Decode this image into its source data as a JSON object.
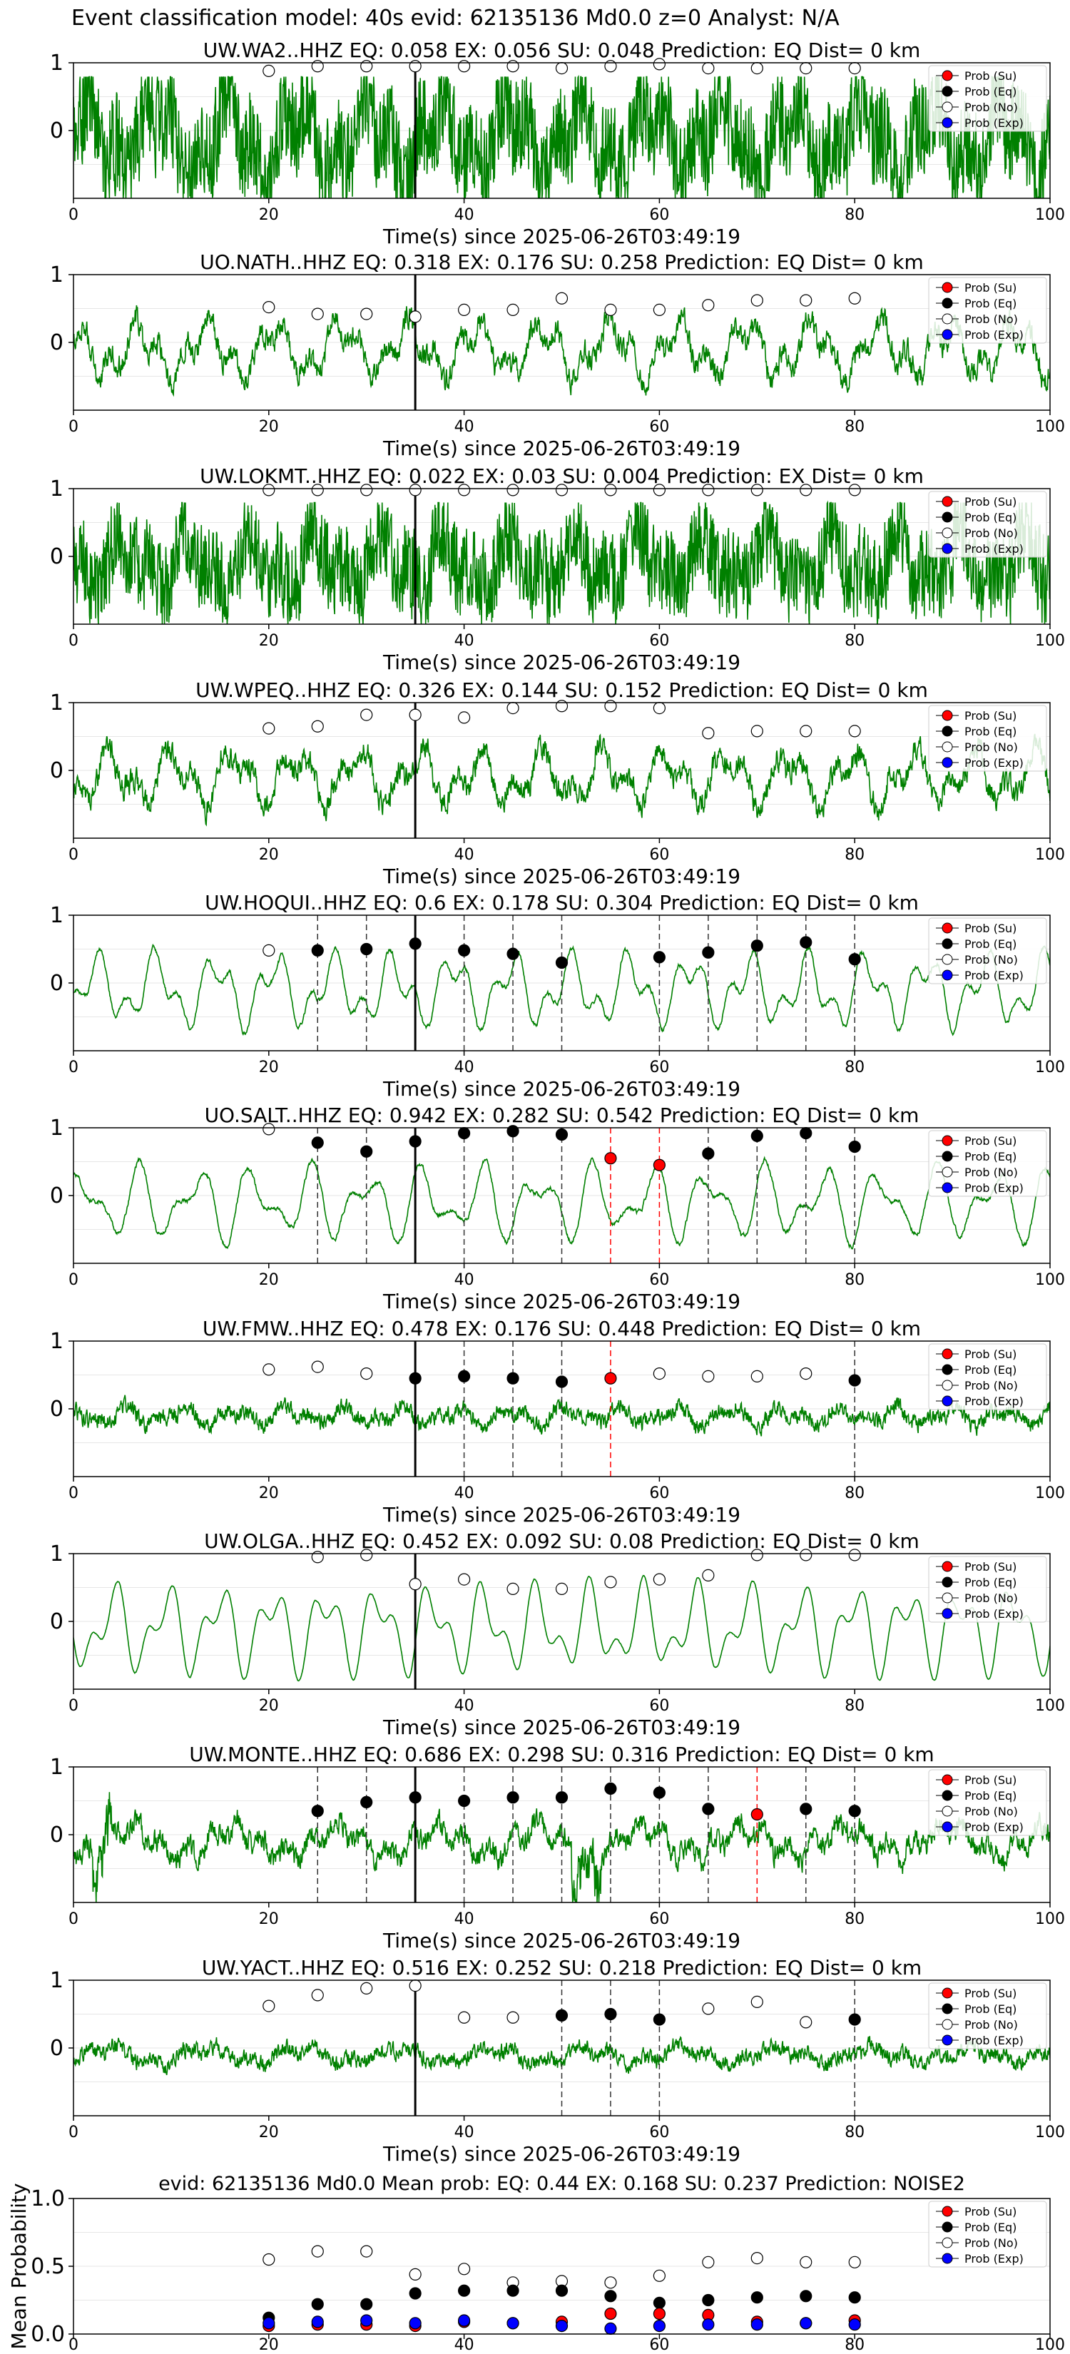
{
  "suptitle": "Event classification model: 40s evid: 62135136 Md0.0 z=0 Analyst: N/A",
  "legend_labels": [
    "Prob (Su)",
    "Prob (Eq)",
    "Prob (No)",
    "Prob (Exp)"
  ],
  "colors": {
    "su": "#ff0000",
    "eq": "#000000",
    "no": "#ffffff",
    "exp": "#0000ff",
    "trace": "#008000",
    "pick": "#000000"
  },
  "pick_time": 35,
  "chart_data": [
    {
      "type": "line",
      "title": "UW.WA2..HHZ   EQ: 0.058  EX: 0.056  SU: 0.048   Prediction: EQ    Dist= 0 km",
      "xlabel": "Time(s) since 2025-06-26T03:49:19",
      "xlim": [
        0,
        100
      ],
      "ylim": [
        -1,
        1
      ],
      "x_ticks": [
        0,
        20,
        40,
        60,
        80,
        100
      ],
      "y_ticks": [
        0,
        1
      ],
      "grid": "horizontal-light",
      "legend": "right",
      "trace_style": "noisy-high",
      "windows": [
        20,
        25,
        30,
        35,
        40,
        45,
        50,
        55,
        60,
        65,
        70,
        75,
        80
      ],
      "prob_no": [
        0.88,
        0.95,
        0.95,
        0.95,
        0.95,
        0.95,
        0.92,
        0.95,
        0.98,
        0.92,
        0.92,
        0.92,
        0.92
      ],
      "prob_eq_markers": [],
      "prob_su_markers": [],
      "eq_lines": [],
      "su_lines": []
    },
    {
      "type": "line",
      "title": "UO.NATH..HHZ   EQ: 0.318  EX: 0.176  SU: 0.258   Prediction: EQ    Dist= 0 km",
      "xlabel": "Time(s) since 2025-06-26T03:49:19",
      "xlim": [
        0,
        100
      ],
      "ylim": [
        -1,
        1
      ],
      "x_ticks": [
        0,
        20,
        40,
        60,
        80,
        100
      ],
      "y_ticks": [
        0,
        1
      ],
      "grid": "horizontal-light",
      "legend": "right",
      "trace_style": "wavy",
      "windows": [
        20,
        25,
        30,
        35,
        40,
        45,
        50,
        55,
        60,
        65,
        70,
        75,
        80
      ],
      "prob_no": [
        0.52,
        0.42,
        0.42,
        0.38,
        0.48,
        0.48,
        0.65,
        0.48,
        0.48,
        0.55,
        0.62,
        0.62,
        0.65
      ],
      "prob_eq_markers": [],
      "prob_su_markers": [],
      "eq_lines": [],
      "su_lines": []
    },
    {
      "type": "line",
      "title": "UW.LOKMT..HHZ   EQ: 0.022  EX: 0.03  SU: 0.004   Prediction: EX    Dist= 0 km",
      "xlabel": "Time(s) since 2025-06-26T03:49:19",
      "xlim": [
        0,
        100
      ],
      "ylim": [
        -1,
        1
      ],
      "x_ticks": [
        0,
        20,
        40,
        60,
        80,
        100
      ],
      "y_ticks": [
        0,
        1
      ],
      "grid": "horizontal-light",
      "legend": "right",
      "trace_style": "noisy",
      "windows": [
        20,
        25,
        30,
        35,
        40,
        45,
        50,
        55,
        60,
        65,
        70,
        75,
        80
      ],
      "prob_no": [
        0.98,
        0.98,
        0.98,
        0.98,
        0.98,
        0.98,
        0.98,
        0.98,
        0.98,
        0.98,
        0.98,
        0.98,
        0.98
      ],
      "prob_eq_markers": [],
      "prob_su_markers": [],
      "eq_lines": [],
      "su_lines": []
    },
    {
      "type": "line",
      "title": "UW.WPEQ..HHZ   EQ: 0.326  EX: 0.144  SU: 0.152   Prediction: EQ    Dist= 0 km",
      "xlabel": "Time(s) since 2025-06-26T03:49:19",
      "xlim": [
        0,
        100
      ],
      "ylim": [
        -1,
        1
      ],
      "x_ticks": [
        0,
        20,
        40,
        60,
        80,
        100
      ],
      "y_ticks": [
        0,
        1
      ],
      "grid": "horizontal-light",
      "legend": "right",
      "trace_style": "wavy",
      "windows": [
        20,
        25,
        30,
        35,
        40,
        45,
        50,
        55,
        60,
        65,
        70,
        75,
        80
      ],
      "prob_no": [
        0.62,
        0.65,
        0.82,
        0.82,
        0.78,
        0.92,
        0.95,
        0.95,
        0.92,
        0.55,
        0.58,
        0.58,
        0.58
      ],
      "prob_eq_markers": [],
      "prob_su_markers": [],
      "eq_lines": [],
      "su_lines": []
    },
    {
      "type": "line",
      "title": "UW.HOQUI..HHZ   EQ: 0.6  EX: 0.178  SU: 0.304   Prediction: EQ    Dist= 0 km",
      "xlabel": "Time(s) since 2025-06-26T03:49:19",
      "xlim": [
        0,
        100
      ],
      "ylim": [
        -1,
        1
      ],
      "x_ticks": [
        0,
        20,
        40,
        60,
        80,
        100
      ],
      "y_ticks": [
        0,
        1
      ],
      "grid": "horizontal-light",
      "legend": "right",
      "trace_style": "smooth",
      "windows": [
        20,
        25,
        30,
        35,
        40,
        45,
        50,
        55,
        60,
        65,
        70,
        75,
        80
      ],
      "prob_no": [
        0.48,
        null,
        null,
        null,
        null,
        null,
        null,
        null,
        null,
        null,
        null,
        null,
        null
      ],
      "prob_eq_markers": [
        [
          25,
          0.48
        ],
        [
          30,
          0.5
        ],
        [
          35,
          0.58
        ],
        [
          40,
          0.48
        ],
        [
          45,
          0.43
        ],
        [
          50,
          0.3
        ],
        [
          60,
          0.38
        ],
        [
          65,
          0.45
        ],
        [
          70,
          0.55
        ],
        [
          75,
          0.6
        ],
        [
          80,
          0.35
        ]
      ],
      "prob_su_markers": [],
      "eq_lines": [
        25,
        30,
        40,
        45,
        50,
        60,
        65,
        70,
        75,
        80
      ],
      "su_lines": []
    },
    {
      "type": "line",
      "title": "UO.SALT..HHZ   EQ: 0.942  EX: 0.282  SU: 0.542   Prediction: EQ    Dist= 0 km",
      "xlabel": "Time(s) since 2025-06-26T03:49:19",
      "xlim": [
        0,
        100
      ],
      "ylim": [
        -1,
        1
      ],
      "x_ticks": [
        0,
        20,
        40,
        60,
        80,
        100
      ],
      "y_ticks": [
        0,
        1
      ],
      "grid": "horizontal-light",
      "legend": "right",
      "trace_style": "smooth",
      "windows": [
        20,
        25,
        30,
        35,
        40,
        45,
        50,
        55,
        60,
        65,
        70,
        75,
        80
      ],
      "prob_no": [
        0.98,
        null,
        null,
        null,
        null,
        null,
        null,
        null,
        null,
        null,
        null,
        null,
        null
      ],
      "prob_eq_markers": [
        [
          25,
          0.78
        ],
        [
          30,
          0.65
        ],
        [
          35,
          0.8
        ],
        [
          40,
          0.92
        ],
        [
          45,
          0.95
        ],
        [
          50,
          0.9
        ],
        [
          65,
          0.62
        ],
        [
          70,
          0.88
        ],
        [
          75,
          0.92
        ],
        [
          80,
          0.72
        ]
      ],
      "prob_su_markers": [
        [
          55,
          0.55
        ],
        [
          60,
          0.45
        ]
      ],
      "eq_lines": [
        25,
        30,
        40,
        45,
        50,
        65,
        70,
        75,
        80
      ],
      "su_lines": [
        55,
        60
      ]
    },
    {
      "type": "line",
      "title": "UW.FMW..HHZ   EQ: 0.478  EX: 0.176  SU: 0.448   Prediction: EQ    Dist= 0 km",
      "xlabel": "Time(s) since 2025-06-26T03:49:19",
      "xlim": [
        0,
        100
      ],
      "ylim": [
        -1,
        1
      ],
      "x_ticks": [
        0,
        20,
        40,
        60,
        80,
        100
      ],
      "y_ticks": [
        0,
        1
      ],
      "grid": "horizontal-light",
      "legend": "right",
      "trace_style": "low",
      "windows": [
        20,
        25,
        30,
        35,
        40,
        45,
        50,
        55,
        60,
        65,
        70,
        75,
        80
      ],
      "prob_no": [
        0.58,
        0.62,
        0.52,
        null,
        null,
        null,
        null,
        null,
        0.52,
        0.48,
        0.48,
        0.52,
        null
      ],
      "prob_eq_markers": [
        [
          35,
          0.45
        ],
        [
          40,
          0.48
        ],
        [
          45,
          0.45
        ],
        [
          50,
          0.4
        ],
        [
          80,
          0.42
        ]
      ],
      "prob_su_markers": [
        [
          55,
          0.45
        ]
      ],
      "eq_lines": [
        40,
        45,
        50,
        80
      ],
      "su_lines": [
        55
      ]
    },
    {
      "type": "line",
      "title": "UW.OLGA..HHZ   EQ: 0.452  EX: 0.092  SU: 0.08    Prediction: EQ    Dist= 0 km",
      "xlabel": "Time(s) since 2025-06-26T03:49:19",
      "xlim": [
        0,
        100
      ],
      "ylim": [
        -1,
        1
      ],
      "x_ticks": [
        0,
        20,
        40,
        60,
        80,
        100
      ],
      "y_ticks": [
        0,
        1
      ],
      "grid": "horizontal-light",
      "legend": "right",
      "trace_style": "smooth-high",
      "windows": [
        20,
        25,
        30,
        35,
        40,
        45,
        50,
        55,
        60,
        65,
        70,
        75,
        80
      ],
      "prob_no": [
        null,
        0.95,
        0.98,
        0.55,
        0.62,
        0.48,
        0.48,
        0.58,
        0.62,
        0.68,
        0.98,
        0.98,
        0.98
      ],
      "prob_eq_markers": [],
      "prob_su_markers": [],
      "eq_lines": [],
      "su_lines": []
    },
    {
      "type": "line",
      "title": "UW.MONTE..HHZ   EQ: 0.686  EX: 0.298  SU: 0.316   Prediction: EQ    Dist= 0 km",
      "xlabel": "Time(s) since 2025-06-26T03:49:19",
      "xlim": [
        0,
        100
      ],
      "ylim": [
        -1,
        1
      ],
      "x_ticks": [
        0,
        20,
        40,
        60,
        80,
        100
      ],
      "y_ticks": [
        0,
        1
      ],
      "grid": "horizontal-light",
      "legend": "right",
      "trace_style": "spiky",
      "windows": [
        20,
        25,
        30,
        35,
        40,
        45,
        50,
        55,
        60,
        65,
        70,
        75,
        80
      ],
      "prob_no": [
        null,
        null,
        null,
        null,
        null,
        null,
        null,
        null,
        null,
        null,
        null,
        null,
        null
      ],
      "prob_eq_markers": [
        [
          25,
          0.35
        ],
        [
          30,
          0.48
        ],
        [
          35,
          0.55
        ],
        [
          40,
          0.5
        ],
        [
          45,
          0.55
        ],
        [
          50,
          0.55
        ],
        [
          55,
          0.68
        ],
        [
          60,
          0.62
        ],
        [
          65,
          0.38
        ],
        [
          75,
          0.38
        ],
        [
          80,
          0.35
        ]
      ],
      "prob_su_markers": [
        [
          70,
          0.3
        ]
      ],
      "eq_lines": [
        25,
        30,
        40,
        45,
        50,
        55,
        60,
        65,
        75,
        80
      ],
      "su_lines": [
        70
      ]
    },
    {
      "type": "line",
      "title": "UW.YACT..HHZ   EQ: 0.516  EX: 0.252  SU: 0.218   Prediction: EQ    Dist= 0 km",
      "xlabel": "Time(s) since 2025-06-26T03:49:19",
      "xlim": [
        0,
        100
      ],
      "ylim": [
        -1,
        1
      ],
      "x_ticks": [
        0,
        20,
        40,
        60,
        80,
        100
      ],
      "y_ticks": [
        0,
        1
      ],
      "grid": "horizontal-light",
      "legend": "right",
      "trace_style": "low",
      "windows": [
        20,
        25,
        30,
        35,
        40,
        45,
        50,
        55,
        60,
        65,
        70,
        75,
        80
      ],
      "prob_no": [
        0.62,
        0.78,
        0.88,
        0.92,
        0.45,
        0.45,
        null,
        null,
        null,
        0.58,
        0.68,
        0.38,
        null
      ],
      "prob_eq_markers": [
        [
          50,
          0.48
        ],
        [
          55,
          0.5
        ],
        [
          60,
          0.42
        ],
        [
          80,
          0.42
        ]
      ],
      "prob_su_markers": [],
      "eq_lines": [
        50,
        55,
        60,
        80
      ],
      "su_lines": []
    },
    {
      "type": "scatter",
      "title": "evid: 62135136  Md0.0   Mean prob:   EQ: 0.44  EX: 0.168  SU: 0.237   Prediction: NOISE2",
      "xlabel": "",
      "ylabel": "Mean Probability",
      "xlim": [
        0,
        100
      ],
      "ylim": [
        0,
        1
      ],
      "x_ticks": [
        0,
        20,
        40,
        60,
        80,
        100
      ],
      "y_ticks": [
        0.0,
        0.5,
        1.0
      ],
      "grid": "horizontal-light",
      "legend": "right",
      "windows": [
        20,
        25,
        30,
        35,
        40,
        45,
        50,
        55,
        60,
        65,
        70,
        75,
        80
      ],
      "series": [
        {
          "name": "Prob (No)",
          "values": [
            0.55,
            0.61,
            0.61,
            0.44,
            0.48,
            0.38,
            0.39,
            0.38,
            0.43,
            0.53,
            0.56,
            0.53,
            0.53
          ]
        },
        {
          "name": "Prob (Eq)",
          "values": [
            0.12,
            0.22,
            0.22,
            0.3,
            0.32,
            0.32,
            0.32,
            0.28,
            0.23,
            0.25,
            0.27,
            0.28,
            0.27
          ]
        },
        {
          "name": "Prob (Su)",
          "values": [
            0.06,
            0.07,
            0.07,
            0.06,
            0.09,
            0.08,
            0.09,
            0.15,
            0.15,
            0.14,
            0.09,
            0.08,
            0.1
          ]
        },
        {
          "name": "Prob (Exp)",
          "values": [
            0.08,
            0.09,
            0.1,
            0.08,
            0.1,
            0.08,
            0.06,
            0.04,
            0.06,
            0.07,
            0.07,
            0.08,
            0.07
          ]
        }
      ]
    }
  ]
}
